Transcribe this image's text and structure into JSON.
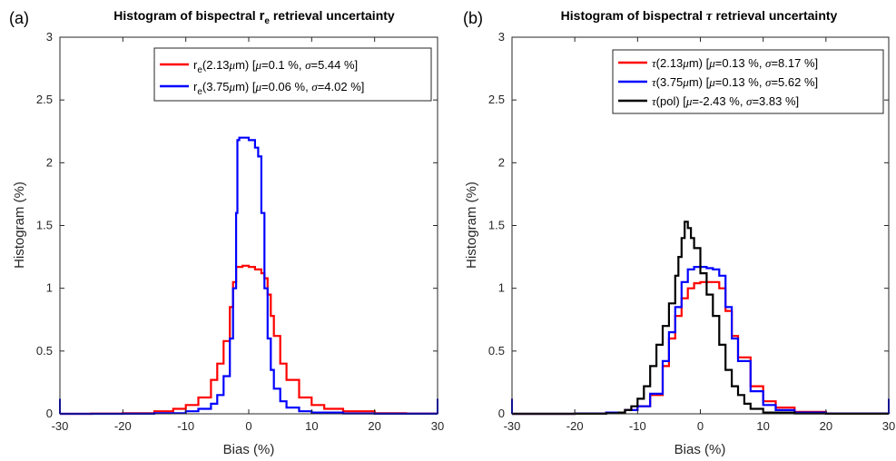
{
  "chart_data": [
    {
      "type": "line",
      "panel_label": "(a)",
      "title_parts": [
        "Histogram of bispectral ",
        "r",
        "e",
        " retrieval uncertainty"
      ],
      "xlabel": "Bias (%)",
      "ylabel": "Histogram (%)",
      "xlim": [
        -30,
        30
      ],
      "ylim": [
        0,
        3
      ],
      "xticks": [
        "-30",
        "-20",
        "-10",
        "0",
        "10",
        "20",
        "30"
      ],
      "yticks": [
        "0",
        "0.5",
        "1",
        "1.5",
        "2",
        "2.5",
        "3"
      ],
      "grid": false,
      "legend_position": "top-right",
      "series": [
        {
          "name_parts": [
            "r",
            "e",
            "(2.13",
            "μ",
            "m) [",
            "μ",
            "=0.1 %, ",
            "σ",
            "=5.44 %]"
          ],
          "color": "#ff0000",
          "x": [
            -30,
            -25,
            -20,
            -15,
            -12,
            -10,
            -8,
            -6,
            -5,
            -4,
            -3,
            -2.5,
            -2,
            -1,
            0,
            1,
            2,
            2.5,
            3,
            3.5,
            4,
            5,
            6,
            8,
            10,
            12,
            15,
            20,
            25,
            30
          ],
          "y": [
            0,
            0.002,
            0.005,
            0.02,
            0.04,
            0.07,
            0.13,
            0.27,
            0.4,
            0.58,
            0.85,
            1.05,
            1.17,
            1.18,
            1.17,
            1.15,
            1.12,
            1.08,
            0.95,
            0.78,
            0.62,
            0.4,
            0.27,
            0.13,
            0.07,
            0.04,
            0.02,
            0.005,
            0.002,
            0
          ]
        },
        {
          "name_parts": [
            "r",
            "e",
            "(3.75",
            "μ",
            "m) [",
            "μ",
            "=0.06 %, ",
            "σ",
            "=4.02 %]"
          ],
          "color": "#0000ff",
          "x": [
            -30,
            -20,
            -15,
            -10,
            -8,
            -6,
            -5,
            -4,
            -3,
            -2.5,
            -2,
            -1.8,
            -1.5,
            -1,
            0,
            1,
            1.5,
            2,
            2.5,
            3,
            3.5,
            4,
            5,
            6,
            8,
            10,
            15,
            20,
            30
          ],
          "y": [
            0,
            0.001,
            0.005,
            0.02,
            0.04,
            0.08,
            0.15,
            0.3,
            0.6,
            1.0,
            1.6,
            2.18,
            2.2,
            2.2,
            2.18,
            2.12,
            2.05,
            1.6,
            1.0,
            0.6,
            0.35,
            0.2,
            0.1,
            0.05,
            0.02,
            0.01,
            0.003,
            0.001,
            0
          ]
        }
      ]
    },
    {
      "type": "line",
      "panel_label": "(b)",
      "title_parts": [
        "Histogram of bispectral ",
        "τ",
        " retrieval uncertainty"
      ],
      "xlabel": "Bias (%)",
      "ylabel": "Histogram (%)",
      "xlim": [
        -30,
        30
      ],
      "ylim": [
        0,
        3
      ],
      "xticks": [
        "-30",
        "-20",
        "-10",
        "0",
        "10",
        "20",
        "30"
      ],
      "yticks": [
        "0",
        "0.5",
        "1",
        "1.5",
        "2",
        "2.5",
        "3"
      ],
      "grid": false,
      "legend_position": "top-right",
      "series": [
        {
          "name_parts": [
            "τ",
            "(2.13",
            "μ",
            "m) [",
            "μ",
            "=0.13 %, ",
            "σ",
            "=8.17 %]"
          ],
          "color": "#ff0000",
          "x": [
            -30,
            -20,
            -15,
            -12,
            -10,
            -8,
            -6,
            -5,
            -4,
            -3,
            -2,
            -1,
            0,
            1,
            2,
            3,
            4,
            5,
            6,
            8,
            10,
            12,
            15,
            20,
            30
          ],
          "y": [
            0,
            0.002,
            0.01,
            0.03,
            0.06,
            0.15,
            0.38,
            0.6,
            0.78,
            0.92,
            1.0,
            1.04,
            1.05,
            1.05,
            1.05,
            1.0,
            0.82,
            0.62,
            0.45,
            0.22,
            0.1,
            0.05,
            0.015,
            0.003,
            0
          ]
        },
        {
          "name_parts": [
            "τ",
            "(3.75",
            "μ",
            "m) [",
            "μ",
            "=0.13 %, ",
            "σ",
            "=5.62 %]"
          ],
          "color": "#0000ff",
          "x": [
            -30,
            -20,
            -15,
            -12,
            -10,
            -8,
            -6,
            -5,
            -4,
            -3,
            -2,
            -1,
            0,
            1,
            2,
            3,
            4,
            5,
            6,
            8,
            10,
            12,
            15,
            20,
            30
          ],
          "y": [
            0,
            0.002,
            0.01,
            0.03,
            0.06,
            0.16,
            0.42,
            0.65,
            0.85,
            1.05,
            1.15,
            1.17,
            1.17,
            1.16,
            1.15,
            1.1,
            0.85,
            0.6,
            0.42,
            0.18,
            0.07,
            0.03,
            0.01,
            0.002,
            0
          ]
        },
        {
          "name_parts": [
            "τ",
            "(pol) [",
            "μ",
            "=-2.43 %, ",
            "σ",
            "=3.83 %]"
          ],
          "color": "#000000",
          "x": [
            -30,
            -20,
            -15,
            -13,
            -12,
            -11,
            -10,
            -9,
            -8,
            -7,
            -6,
            -5,
            -4,
            -3.5,
            -3,
            -2.5,
            -2,
            -1.5,
            -1,
            0,
            1,
            2,
            3,
            4,
            5,
            6,
            7,
            8,
            10,
            15,
            20,
            30
          ],
          "y": [
            0,
            0.001,
            0.005,
            0.01,
            0.03,
            0.06,
            0.12,
            0.22,
            0.38,
            0.55,
            0.7,
            0.88,
            1.1,
            1.25,
            1.4,
            1.53,
            1.48,
            1.4,
            1.32,
            1.12,
            0.95,
            0.78,
            0.55,
            0.35,
            0.22,
            0.15,
            0.08,
            0.04,
            0.01,
            0.002,
            0.001,
            0
          ]
        }
      ]
    }
  ]
}
